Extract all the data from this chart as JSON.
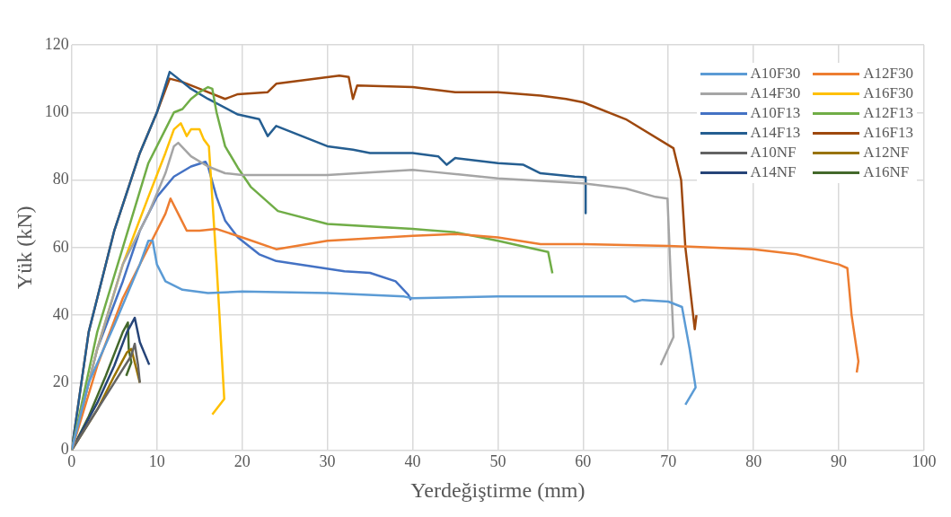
{
  "chart_data": {
    "type": "line",
    "xlabel": "Yerdeğiştirme (mm)",
    "ylabel": "Yük (kN)",
    "xlim": [
      0,
      100
    ],
    "xticks": [
      0,
      10,
      20,
      30,
      40,
      50,
      60,
      70,
      80,
      90,
      100
    ],
    "ylim": [
      0,
      120
    ],
    "yticks": [
      0,
      20,
      40,
      60,
      80,
      100,
      120
    ],
    "grid": true,
    "legend": "top right",
    "marker": "none",
    "line_style": "solid",
    "series": [
      {
        "name": "A10F30",
        "color": "#5b9bd5",
        "x": [
          0,
          2,
          5,
          8,
          9,
          9.5,
          10,
          11,
          13,
          16,
          20,
          30,
          39,
          40,
          50,
          60,
          65,
          66,
          67,
          70,
          71.6,
          72.5,
          73.2,
          72
        ],
        "values": [
          0,
          20,
          37,
          55,
          62,
          62,
          55,
          50,
          47.5,
          46.5,
          47,
          46.5,
          45.5,
          45,
          45.5,
          45.5,
          45.5,
          44,
          44.5,
          44,
          42.4,
          30,
          18.6,
          13.5
        ]
      },
      {
        "name": "A12F30",
        "color": "#ed7d31",
        "x": [
          0,
          3,
          6,
          9,
          11,
          11.6,
          12.5,
          13.5,
          15,
          17,
          20,
          24,
          30,
          40,
          45,
          50,
          55,
          60,
          70,
          80,
          85,
          90,
          91,
          91.5,
          92.3,
          92.1
        ],
        "values": [
          0,
          25,
          45,
          60,
          70,
          74.5,
          70,
          65,
          65,
          65.5,
          63,
          59.5,
          62,
          63.5,
          64,
          63,
          61,
          61,
          60.5,
          59.5,
          58,
          55,
          53.9,
          40,
          26.3,
          23
        ]
      },
      {
        "name": "A14F30",
        "color": "#a5a5a5",
        "x": [
          0,
          3,
          6,
          9,
          11,
          12,
          12.5,
          14,
          16,
          18,
          20,
          30,
          40,
          42,
          50,
          60,
          65,
          68.5,
          69.9,
          70.3,
          70.6,
          69.1
        ],
        "values": [
          0,
          30,
          55,
          70,
          82,
          90,
          91,
          87,
          84,
          82,
          81.5,
          81.5,
          83,
          82.5,
          80.5,
          79,
          77.5,
          75,
          74.5,
          50,
          33.5,
          25.2
        ]
      },
      {
        "name": "A16F30",
        "color": "#ffc000",
        "x": [
          0,
          3,
          6,
          9,
          11,
          12,
          12.8,
          13.5,
          14,
          15,
          15.5,
          16.1,
          17,
          17.9,
          16.5
        ],
        "values": [
          0,
          30,
          55,
          75,
          88,
          95,
          96.8,
          93,
          95,
          95,
          92,
          90,
          55,
          15.2,
          10.6
        ]
      },
      {
        "name": "A10F13",
        "color": "#4472c4",
        "x": [
          0,
          3,
          6,
          8,
          10,
          12,
          14,
          15.7,
          16,
          17,
          18,
          19.5,
          22,
          24,
          28,
          32,
          35,
          38,
          39.5,
          39.8
        ],
        "values": [
          0,
          30,
          50,
          65,
          75,
          81,
          84,
          85.4,
          84,
          75,
          68,
          63,
          58,
          56,
          54.5,
          53,
          52.5,
          50,
          46,
          44.4
        ]
      },
      {
        "name": "A12F13",
        "color": "#70ad47",
        "x": [
          0,
          3,
          6,
          9,
          11,
          12,
          13,
          14,
          15,
          16,
          16.5,
          17,
          18,
          19.5,
          21,
          24.2,
          30,
          40,
          45,
          50,
          55.9,
          56.4
        ],
        "values": [
          0,
          35,
          60,
          85,
          95,
          100,
          101,
          104,
          106,
          107.5,
          107,
          100,
          90,
          83.6,
          78,
          70.8,
          67,
          65.5,
          64.5,
          62,
          58.7,
          52.4
        ]
      },
      {
        "name": "A14F13",
        "color": "#255e91",
        "x": [
          0,
          2,
          5,
          8,
          10,
          11.5,
          12.5,
          14,
          16,
          19.5,
          22,
          23,
          24,
          27,
          30,
          33,
          35,
          40,
          43,
          44,
          45,
          50,
          53,
          55,
          59,
          60.3,
          60.3
        ],
        "values": [
          0,
          35,
          65,
          88,
          100,
          112,
          110,
          107,
          104,
          99.4,
          98,
          93,
          96,
          93,
          90,
          89,
          88,
          88,
          87,
          84.5,
          86.5,
          85,
          84.5,
          82,
          81,
          80.8,
          70.2
        ]
      },
      {
        "name": "A16F13",
        "color": "#9e480e",
        "x": [
          0,
          2,
          5,
          8,
          10,
          11.5,
          13,
          15,
          18,
          19.5,
          23,
          24,
          31.4,
          32.5,
          33,
          33.5,
          40,
          45,
          50,
          55,
          58,
          60,
          65,
          70.6,
          71.5,
          72,
          73.1,
          73.3
        ],
        "values": [
          0,
          35,
          65,
          88,
          100,
          110,
          109,
          107,
          104,
          105.4,
          106,
          108.5,
          110.9,
          110.5,
          104,
          108,
          107.5,
          106,
          106,
          105,
          104,
          103,
          98,
          89.4,
          80,
          60,
          35.8,
          40
        ]
      },
      {
        "name": "A10NF",
        "color": "#636363",
        "x": [
          0,
          3,
          5,
          7,
          7.4,
          7.8,
          8
        ],
        "values": [
          0,
          12,
          20,
          28,
          31.5,
          25,
          20
        ]
      },
      {
        "name": "A12NF",
        "color": "#997300",
        "x": [
          0,
          3,
          5,
          6.5,
          7,
          7.5,
          8
        ],
        "values": [
          0,
          12,
          22,
          29,
          30,
          25,
          20
        ]
      },
      {
        "name": "A14NF",
        "color": "#264478",
        "x": [
          0,
          3,
          5,
          6.5,
          7.4,
          8,
          9.1
        ],
        "values": [
          0,
          14,
          25,
          35,
          39.2,
          32,
          25.3
        ]
      },
      {
        "name": "A16NF",
        "color": "#43682b",
        "x": [
          0,
          2,
          4,
          6,
          6.6,
          6.7,
          7,
          6.4
        ],
        "values": [
          0,
          10,
          22,
          35,
          37.8,
          30,
          26,
          22
        ]
      }
    ]
  }
}
